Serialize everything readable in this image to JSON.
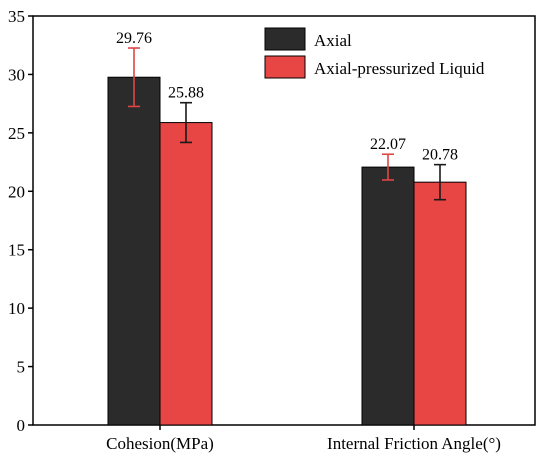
{
  "chart_data": {
    "type": "bar",
    "title": "",
    "xlabel": "",
    "ylabel": "",
    "ylim": [
      0,
      35
    ],
    "yticks": [
      0,
      5,
      10,
      15,
      20,
      25,
      30,
      35
    ],
    "categories": [
      "Cohesion(MPa)",
      "Internal Friction Angle(°)"
    ],
    "series": [
      {
        "name": "Axial",
        "color": "#2b2b2b",
        "error_color": "#e04545",
        "values": [
          29.76,
          22.07
        ],
        "labels": [
          "29.76",
          "22.07"
        ],
        "errors": [
          2.5,
          1.1
        ]
      },
      {
        "name": "Axial-pressurized Liquid",
        "color": "#e84545",
        "error_color": "#1a1a1a",
        "values": [
          25.88,
          20.78
        ],
        "labels": [
          "25.88",
          "20.78"
        ],
        "errors": [
          1.7,
          1.5
        ]
      }
    ],
    "legend_position": "top-right",
    "grid": false
  }
}
